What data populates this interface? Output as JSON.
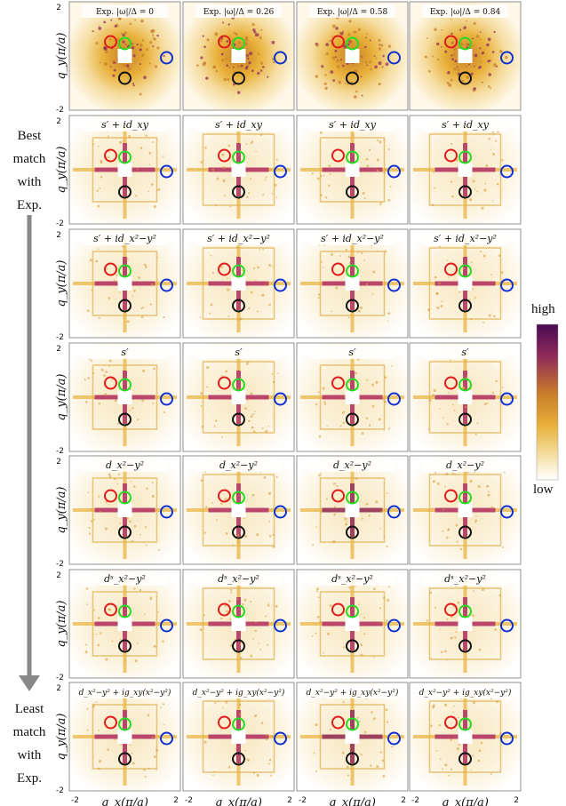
{
  "figure": {
    "columns": [
      "Exp. |ω|/Δ = 0",
      "Exp. |ω|/Δ = 0.26",
      "Exp. |ω|/Δ = 0.58",
      "Exp. |ω|/Δ = 0.84"
    ],
    "rows": [
      {
        "label": "Exp.",
        "panel_titles": [
          "Exp. |ω|/Δ = 0",
          "Exp. |ω|/Δ = 0.26",
          "Exp. |ω|/Δ = 0.58",
          "Exp. |ω|/Δ = 0.84"
        ]
      },
      {
        "label": "s' + i d_xy",
        "panel_titles": [
          "s′ + id_xy",
          "s′ + id_xy",
          "s′ + id_xy",
          "s′ + id_xy"
        ]
      },
      {
        "label": "s' + i d_x2-y2",
        "panel_titles": [
          "s′ + id_x²−y²",
          "s′ + id_x²−y²",
          "s′ + id_x²−y²",
          "s′ + id_x²−y²"
        ]
      },
      {
        "label": "s'",
        "panel_titles": [
          "s′",
          "s′",
          "s′",
          "s′"
        ]
      },
      {
        "label": "d_x2-y2",
        "panel_titles": [
          "d_x²−y²",
          "d_x²−y²",
          "d_x²−y²",
          "d_x²−y²"
        ]
      },
      {
        "label": "d^S_x2-y2",
        "panel_titles": [
          "dˢ_x²−y²",
          "dˢ_x²−y²",
          "dˢ_x²−y²",
          "dˢ_x²−y²"
        ]
      },
      {
        "label": "d_x2-y2 + i g",
        "panel_titles": [
          "d_x²−y² + ig_xy(x²−y²)",
          "d_x²−y² + ig_xy(x²−y²)",
          "d_x²−y² + ig_xy(x²−y²)",
          "d_x²−y² + ig_xy(x²−y²)"
        ]
      }
    ],
    "y_axis_label": "q_y(π/a)",
    "x_axis_label": "q_x(π/a)",
    "tick_min": "-2",
    "tick_max": "2",
    "side_arrow": {
      "top_text": [
        "Best",
        "match",
        "with",
        "Exp."
      ],
      "bottom_text": [
        "Least",
        "match",
        "with",
        "Exp."
      ]
    },
    "colorbar": {
      "high_label": "high",
      "low_label": "low",
      "colors": [
        "#ffffff",
        "#f5e1a8",
        "#e8b13a",
        "#c97e2a",
        "#8e2a5a",
        "#4a0a52"
      ]
    },
    "marker_colors": {
      "red": "#e01b1b",
      "green": "#22dd22",
      "blue": "#1030d0",
      "black": "#111111"
    }
  }
}
